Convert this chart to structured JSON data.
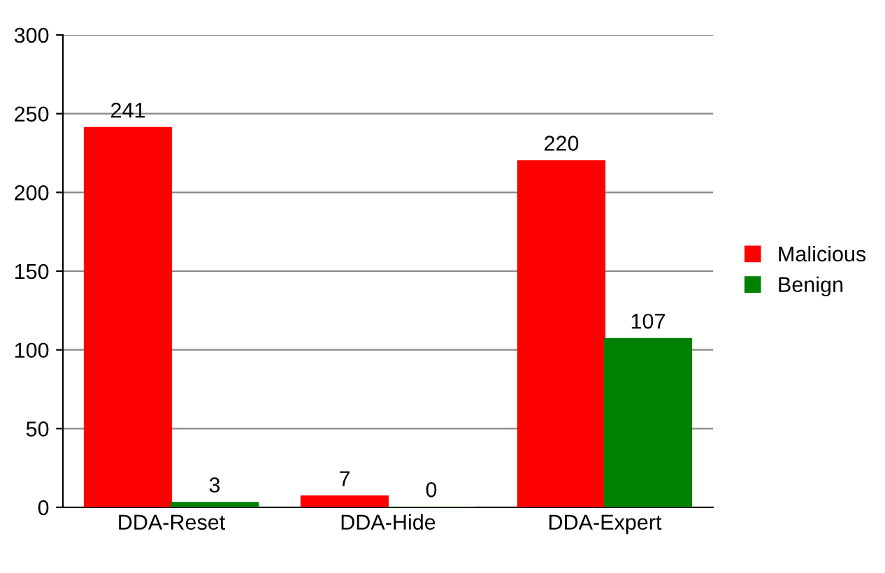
{
  "chart_data": {
    "type": "bar",
    "categories": [
      "DDA-Reset",
      "DDA-Hide",
      "DDA-Expert"
    ],
    "series": [
      {
        "name": "Malicious",
        "color": "#ff0000",
        "values": [
          241,
          7,
          220
        ]
      },
      {
        "name": "Benign",
        "color": "#008000",
        "values": [
          3,
          0,
          107
        ]
      }
    ],
    "ylim": [
      0,
      300
    ],
    "yticks": [
      0,
      50,
      100,
      150,
      200,
      250,
      300
    ],
    "grid": "y",
    "legend": "right",
    "data_labels": true
  }
}
